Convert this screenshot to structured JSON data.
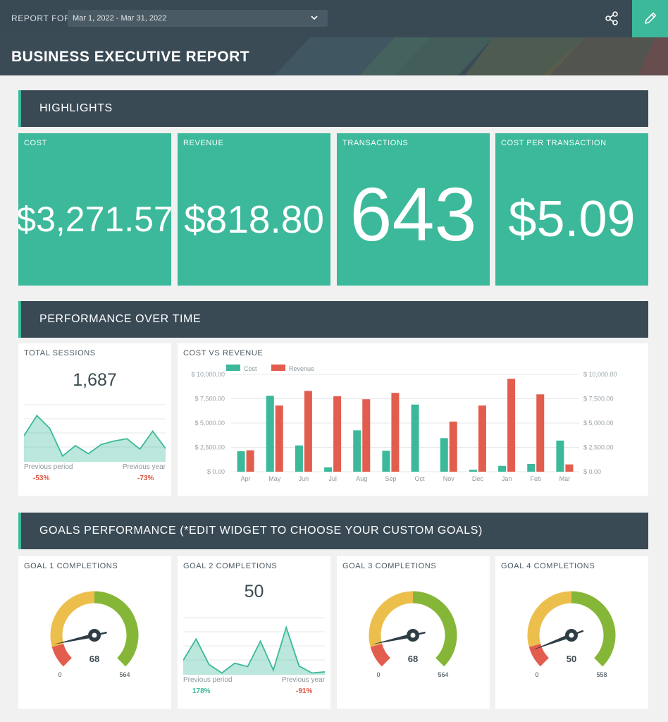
{
  "header": {
    "report_for_label": "REPORT FOR",
    "date_range": "Mar 1, 2022 - Mar 31, 2022",
    "title": "BUSINESS EXECUTIVE REPORT",
    "icons": [
      "chevron-down-icon",
      "share-icon",
      "pencil-icon"
    ]
  },
  "sections": {
    "highlights": "HIGHLIGHTS",
    "performance": "PERFORMANCE OVER TIME",
    "goals": "GOALS PERFORMANCE (*EDIT WIDGET TO CHOOSE YOUR CUSTOM GOALS)"
  },
  "kpis": [
    {
      "label": "COST",
      "value": "$3,271.57"
    },
    {
      "label": "REVENUE",
      "value": "$818.80"
    },
    {
      "label": "TRANSACTIONS",
      "value": "643"
    },
    {
      "label": "COST PER TRANSACTION",
      "value": "$5.09"
    }
  ],
  "sessions": {
    "label": "TOTAL SESSIONS",
    "value": "1,687",
    "prev_period_label": "Previous period",
    "prev_period_change": "-53%",
    "prev_year_label": "Previous year",
    "prev_year_change": "-73%",
    "sparkline": [
      45,
      80,
      58,
      10,
      28,
      14,
      30,
      36,
      40,
      22,
      53,
      23
    ]
  },
  "cost_vs_revenue": {
    "label": "COST VS REVENUE",
    "chart_data": {
      "type": "bar",
      "categories": [
        "Apr",
        "May",
        "Jun",
        "Jul",
        "Aug",
        "Sep",
        "Oct",
        "Nov",
        "Dec",
        "Jan",
        "Feb",
        "Mar"
      ],
      "series": [
        {
          "name": "Cost",
          "color": "#3bb99a",
          "values": [
            2100,
            7800,
            2700,
            450,
            4250,
            2150,
            6900,
            3450,
            200,
            600,
            800,
            3200
          ]
        },
        {
          "name": "Revenue",
          "color": "#e35d4e",
          "values": [
            2200,
            6800,
            8300,
            7750,
            7450,
            8100,
            0,
            5150,
            6800,
            9550,
            7950,
            750
          ]
        }
      ],
      "ylim": [
        0,
        10000
      ],
      "yticks": [
        "$ 0.00",
        "$ 2,500.00",
        "$ 5,000.00",
        "$ 7,500.00",
        "$ 10,000.00"
      ],
      "legend": "top-left",
      "grid": true
    }
  },
  "goals": [
    {
      "label": "GOAL 1 COMPLETIONS",
      "type": "gauge",
      "value": "68",
      "min": "0",
      "max": "564",
      "level": 0.12
    },
    {
      "label": "GOAL 2 COMPLETIONS",
      "type": "spark",
      "value": "50",
      "prev_period_label": "Previous period",
      "prev_period_change": "178%",
      "prev_year_label": "Previous year",
      "prev_year_change": "-91%",
      "sparkline": [
        25,
        62,
        18,
        3,
        20,
        14,
        58,
        8,
        82,
        15,
        3,
        5
      ]
    },
    {
      "label": "GOAL 3 COMPLETIONS",
      "type": "gauge",
      "value": "68",
      "min": "0",
      "max": "564",
      "level": 0.12
    },
    {
      "label": "GOAL 4 COMPLETIONS",
      "type": "gauge",
      "value": "50",
      "min": "0",
      "max": "558",
      "level": 0.09
    }
  ]
}
